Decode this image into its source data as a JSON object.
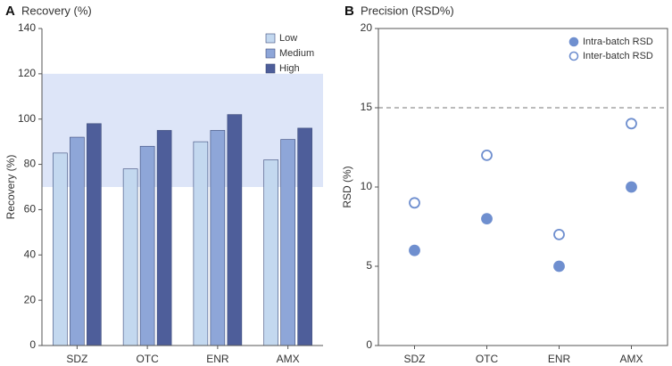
{
  "chart_data": [
    {
      "type": "bar",
      "label": "A",
      "title": "Recovery (%)",
      "y_label": "Recovery (%)",
      "categories": [
        "SDZ",
        "OTC",
        "ENR",
        "AMX"
      ],
      "series": [
        {
          "name": "Low",
          "color": "#c3d8ef",
          "values": [
            85,
            78,
            90,
            82
          ]
        },
        {
          "name": "Medium",
          "color": "#8ea6d8",
          "values": [
            92,
            88,
            95,
            91
          ]
        },
        {
          "name": "High",
          "color": "#4e5e9a",
          "values": [
            98,
            95,
            102,
            96
          ]
        }
      ],
      "band": [
        70,
        120
      ],
      "band_color": "#dde5f8",
      "ylim": [
        0,
        140
      ],
      "yticks": [
        0,
        20,
        40,
        60,
        80,
        100,
        120,
        140
      ],
      "legend": "top-right"
    },
    {
      "type": "scatter",
      "label": "B",
      "title": "Precision (RSD%)",
      "y_label": "RSD (%)",
      "categories": [
        "SDZ",
        "OTC",
        "ENR",
        "AMX"
      ],
      "series": [
        {
          "name": "Intra-batch RSD",
          "color": "#6f8fcf",
          "marker": "filled",
          "values": [
            6,
            8,
            5,
            10
          ]
        },
        {
          "name": "Inter-batch RSD",
          "color": "#6f8fcf",
          "marker": "hollow",
          "values": [
            9,
            12,
            7,
            14
          ]
        }
      ],
      "ref_line": 15,
      "ylim": [
        0,
        20
      ],
      "yticks": [
        0,
        5,
        10,
        15,
        20
      ],
      "legend": "top-right"
    }
  ]
}
